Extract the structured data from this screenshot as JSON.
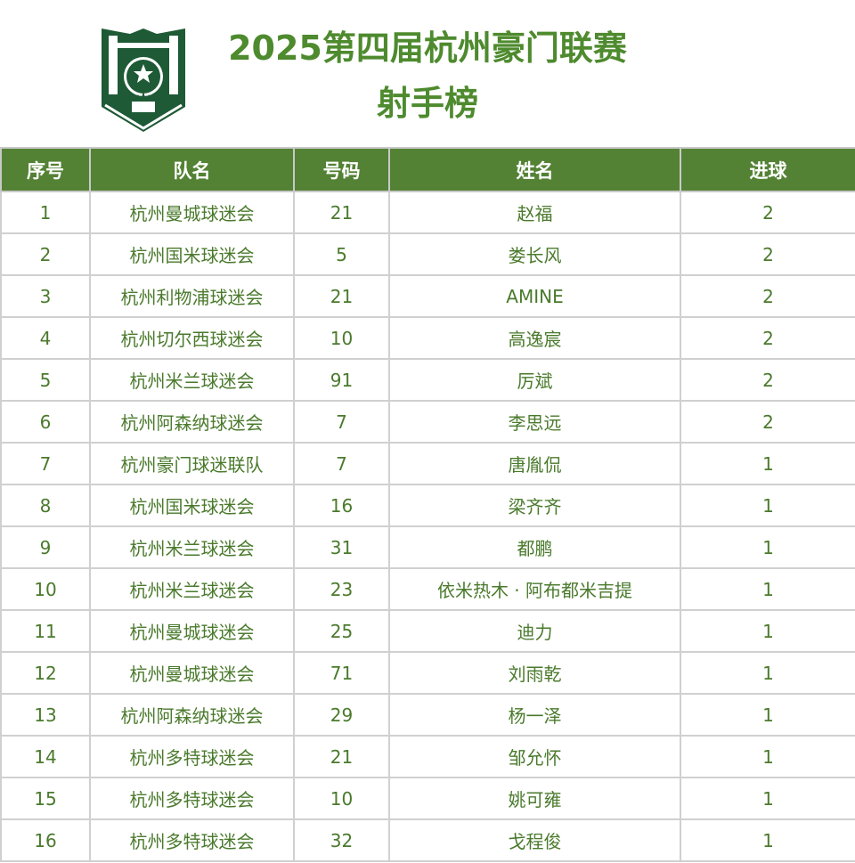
{
  "header": {
    "title_line1": "2025第四届杭州豪门联赛",
    "title_line2": "射手榜",
    "logo_color": "#1d5a35"
  },
  "table": {
    "header_color": "#548235",
    "text_color": "#4a7a2c",
    "columns": [
      "序号",
      "队名",
      "号码",
      "姓名",
      "进球"
    ],
    "rows": [
      [
        "1",
        "杭州曼城球迷会",
        "21",
        "赵福",
        "2"
      ],
      [
        "2",
        "杭州国米球迷会",
        "5",
        "娄长风",
        "2"
      ],
      [
        "3",
        "杭州利物浦球迷会",
        "21",
        "AMINE",
        "2"
      ],
      [
        "4",
        "杭州切尔西球迷会",
        "10",
        "高逸宸",
        "2"
      ],
      [
        "5",
        "杭州米兰球迷会",
        "91",
        "厉斌",
        "2"
      ],
      [
        "6",
        "杭州阿森纳球迷会",
        "7",
        "李思远",
        "2"
      ],
      [
        "7",
        "杭州豪门球迷联队",
        "7",
        "唐胤侃",
        "1"
      ],
      [
        "8",
        "杭州国米球迷会",
        "16",
        "梁齐齐",
        "1"
      ],
      [
        "9",
        "杭州米兰球迷会",
        "31",
        "都鹏",
        "1"
      ],
      [
        "10",
        "杭州米兰球迷会",
        "23",
        "依米热木 · 阿布都米吉提",
        "1"
      ],
      [
        "11",
        "杭州曼城球迷会",
        "25",
        "迪力",
        "1"
      ],
      [
        "12",
        "杭州曼城球迷会",
        "71",
        "刘雨乾",
        "1"
      ],
      [
        "13",
        "杭州阿森纳球迷会",
        "29",
        "杨一泽",
        "1"
      ],
      [
        "14",
        "杭州多特球迷会",
        "21",
        "邹允怀",
        "1"
      ],
      [
        "15",
        "杭州多特球迷会",
        "10",
        "姚可雍",
        "1"
      ],
      [
        "16",
        "杭州多特球迷会",
        "32",
        "戈程俊",
        "1"
      ]
    ]
  }
}
